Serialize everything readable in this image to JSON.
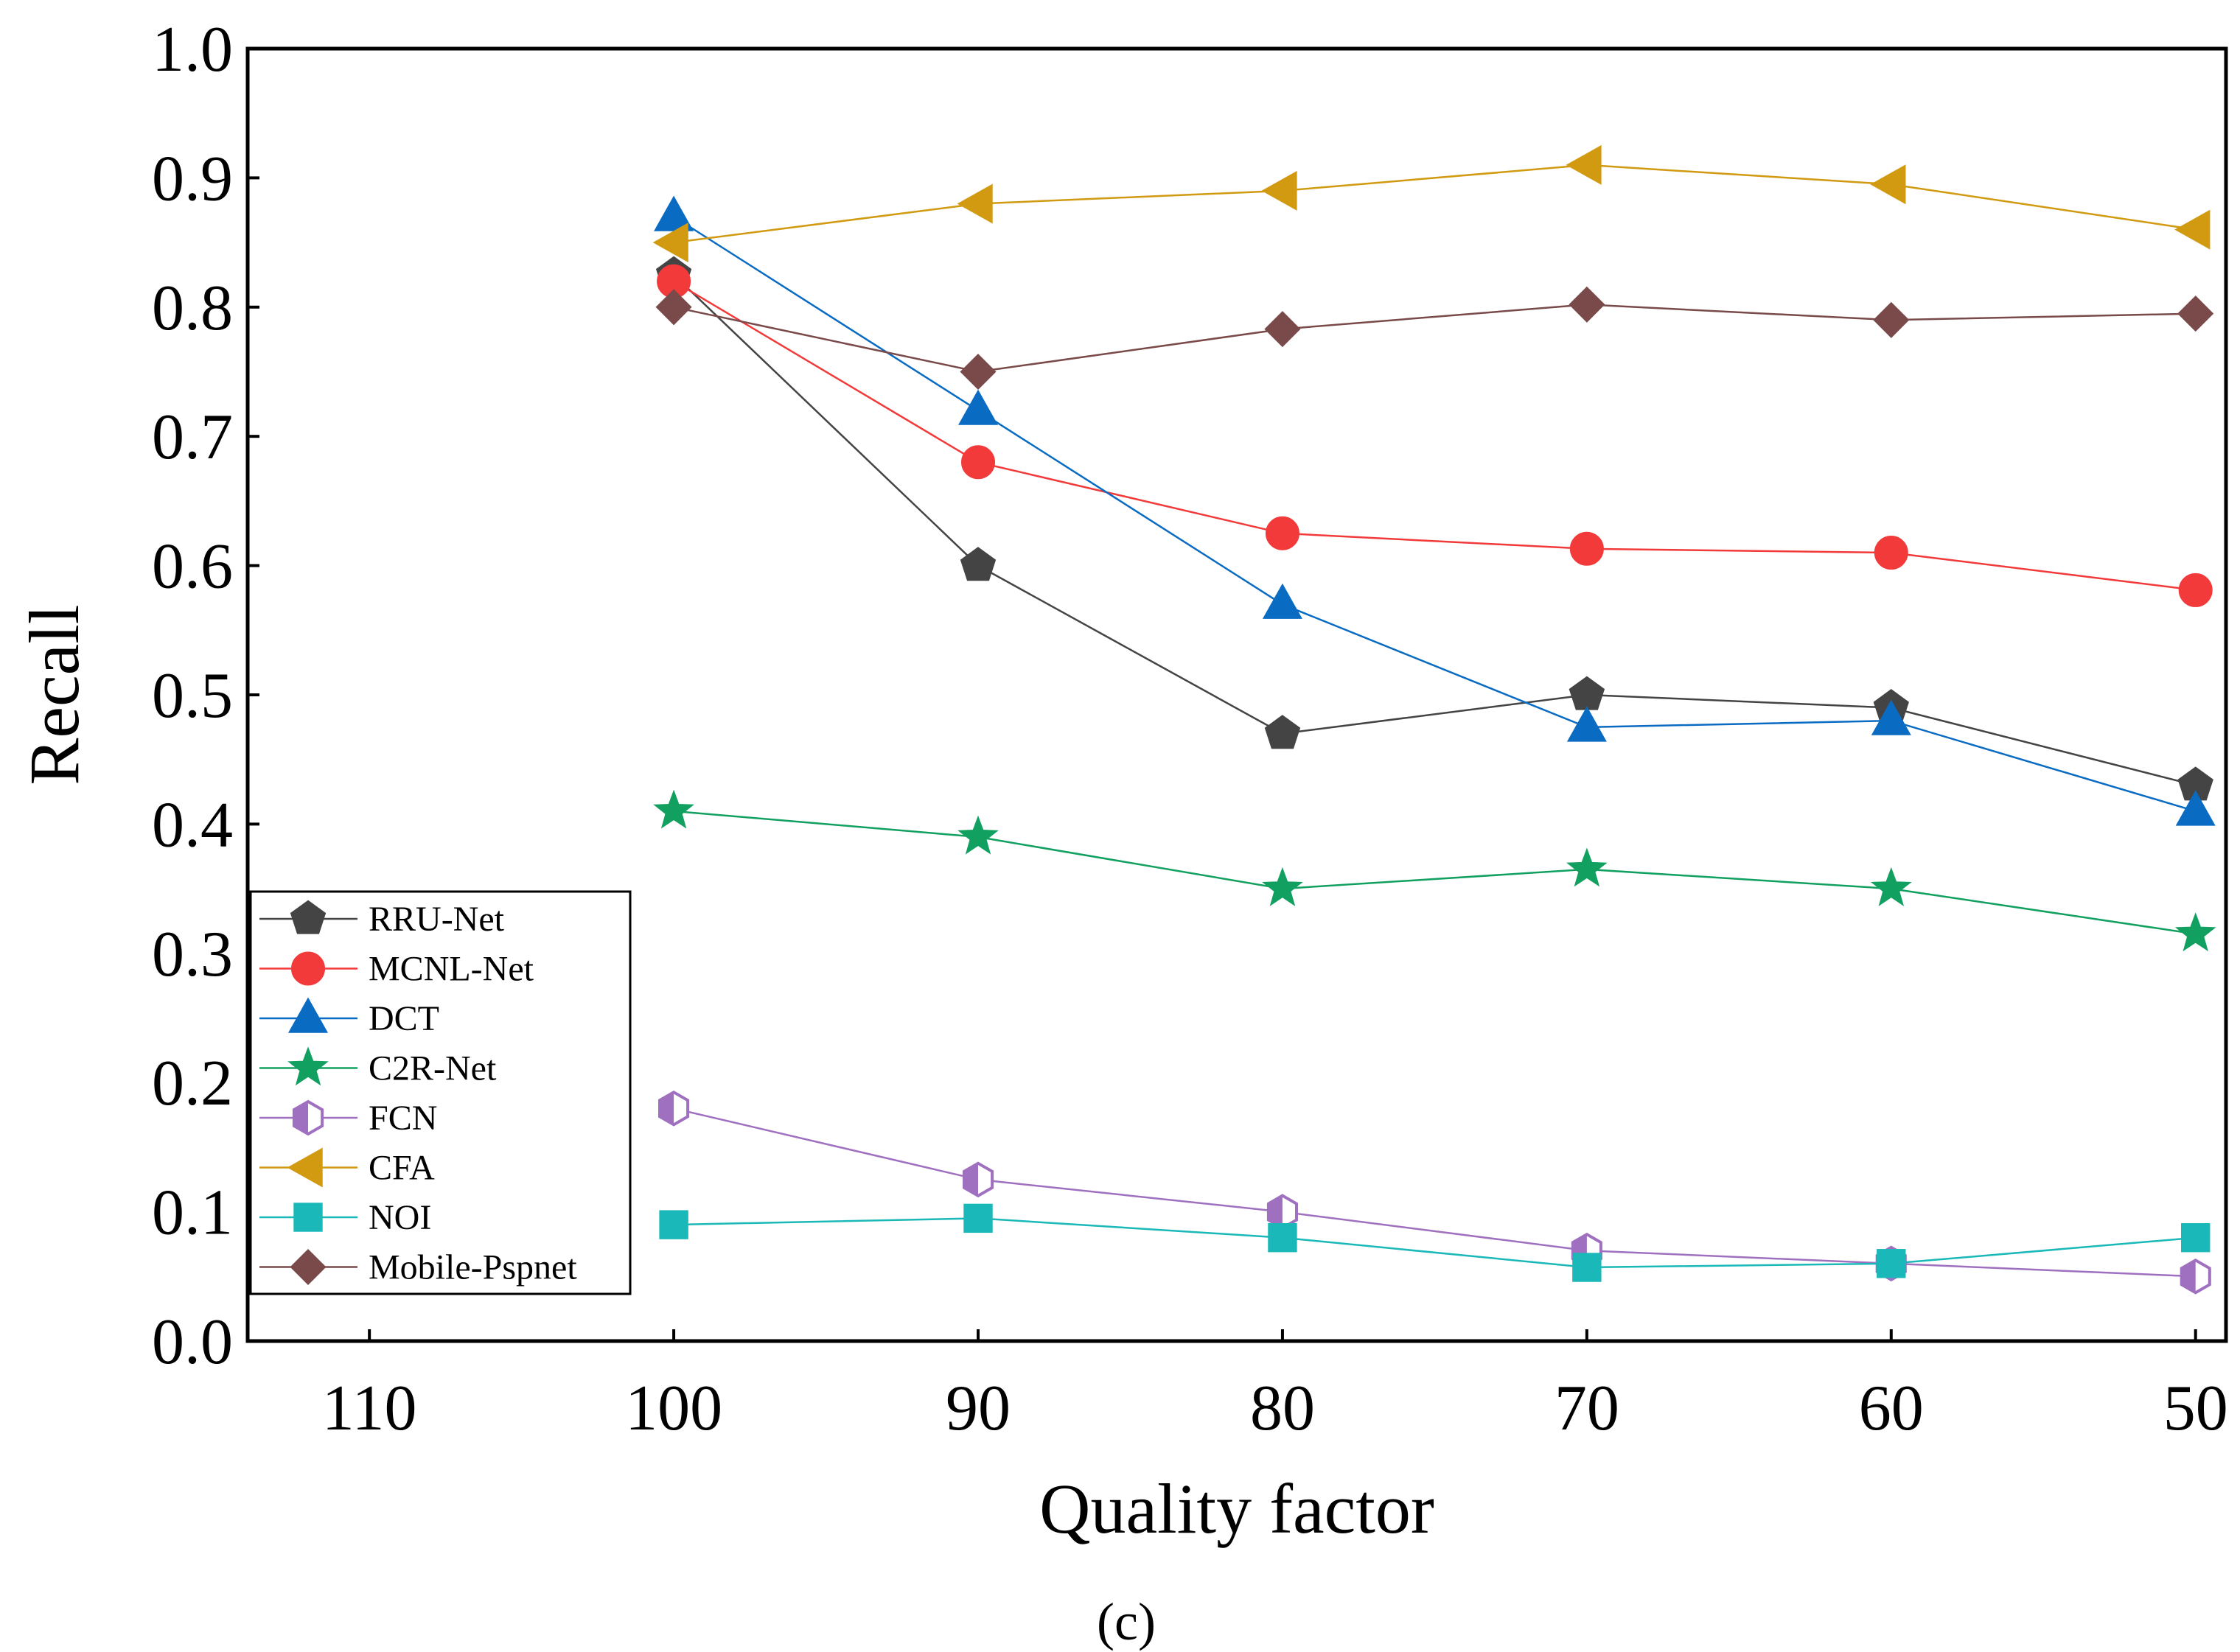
{
  "chart_data": {
    "type": "line",
    "title": "",
    "xlabel": "Quality factor",
    "ylabel": "Recall",
    "panel_label": "(c)",
    "x_ticks": [
      110,
      100,
      90,
      80,
      70,
      60,
      50
    ],
    "x_tick_labels": [
      "110",
      "100",
      "90",
      "80",
      "70",
      "60",
      "50"
    ],
    "xlim": [
      114,
      49
    ],
    "y_ticks": [
      0.0,
      0.1,
      0.2,
      0.3,
      0.4,
      0.5,
      0.6,
      0.7,
      0.8,
      0.9,
      1.0
    ],
    "y_tick_labels": [
      "0.0",
      "0.1",
      "0.2",
      "0.3",
      "0.4",
      "0.5",
      "0.6",
      "0.7",
      "0.8",
      "0.9",
      "1.0"
    ],
    "ylim": [
      0.0,
      1.0
    ],
    "x": [
      100,
      90,
      80,
      70,
      60,
      50
    ],
    "legend_position": "bottom-left",
    "series": [
      {
        "name": "RRU-Net",
        "color": "#444444",
        "marker": "pentagon",
        "values": [
          0.825,
          0.6,
          0.47,
          0.5,
          0.49,
          0.43
        ]
      },
      {
        "name": "MCNL-Net",
        "color": "#f23a3a",
        "marker": "circle",
        "values": [
          0.82,
          0.68,
          0.625,
          0.613,
          0.61,
          0.581
        ]
      },
      {
        "name": "DCT",
        "color": "#0a6bc2",
        "marker": "triangle-up",
        "values": [
          0.87,
          0.72,
          0.57,
          0.475,
          0.48,
          0.41
        ]
      },
      {
        "name": "C2R-Net",
        "color": "#12a060",
        "marker": "star",
        "values": [
          0.41,
          0.39,
          0.35,
          0.365,
          0.35,
          0.315
        ]
      },
      {
        "name": "FCN",
        "color": "#a070c0",
        "marker": "half-hexagon",
        "values": [
          0.18,
          0.125,
          0.1,
          0.07,
          0.06,
          0.05
        ]
      },
      {
        "name": "CFA",
        "color": "#d19a10",
        "marker": "triangle-left",
        "values": [
          0.85,
          0.88,
          0.89,
          0.91,
          0.895,
          0.86
        ]
      },
      {
        "name": "NOI",
        "color": "#1ab8b8",
        "marker": "square",
        "values": [
          0.09,
          0.095,
          0.08,
          0.057,
          0.06,
          0.08
        ]
      },
      {
        "name": "Mobile-Pspnet",
        "color": "#7a4a4a",
        "marker": "diamond",
        "values": [
          0.8,
          0.75,
          0.783,
          0.802,
          0.79,
          0.795
        ]
      }
    ]
  }
}
